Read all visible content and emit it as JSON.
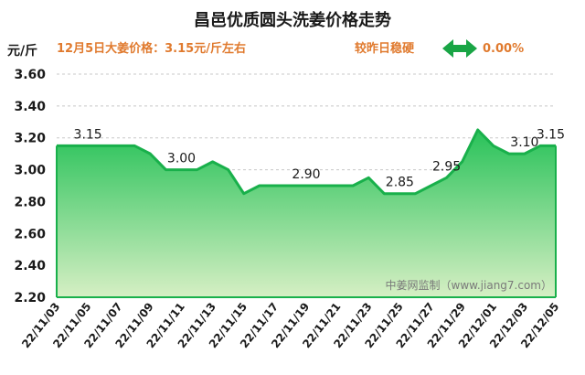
{
  "chart_data": {
    "type": "area",
    "title": "昌邑优质圆头洗姜价格走势",
    "ylabel": "元/斤",
    "info_text": "12月5日大姜价格：3.15元/斤左右",
    "trend_label": "较昨日稳硬",
    "change_text": "0.00%",
    "source_text": "中姜网监制（www.jiang7.com）",
    "ylim": [
      2.2,
      3.6
    ],
    "yticks": [
      "3.60",
      "3.40",
      "3.20",
      "3.00",
      "2.80",
      "2.60",
      "2.40",
      "2.20"
    ],
    "grid": true,
    "x": [
      "22/11/03",
      "22/11/04",
      "22/11/05",
      "22/11/06",
      "22/11/07",
      "22/11/08",
      "22/11/09",
      "22/11/10",
      "22/11/11",
      "22/11/12",
      "22/11/13",
      "22/11/14",
      "22/11/15",
      "22/11/16",
      "22/11/17",
      "22/11/18",
      "22/11/19",
      "22/11/20",
      "22/11/21",
      "22/11/22",
      "22/11/23",
      "22/11/24",
      "22/11/25",
      "22/11/26",
      "22/11/27",
      "22/11/28",
      "22/11/29",
      "22/11/30",
      "22/12/01",
      "22/12/02",
      "22/12/03",
      "22/12/04",
      "22/12/05"
    ],
    "xtick_labels": [
      "22/11/03",
      "22/11/05",
      "22/11/07",
      "22/11/09",
      "22/11/11",
      "22/11/13",
      "22/11/15",
      "22/11/17",
      "22/11/19",
      "22/11/21",
      "22/11/23",
      "22/11/25",
      "22/11/27",
      "22/11/29",
      "22/12/01",
      "22/12/03",
      "22/12/05"
    ],
    "values": [
      3.15,
      3.15,
      3.15,
      3.15,
      3.15,
      3.15,
      3.1,
      3.0,
      3.0,
      3.0,
      3.05,
      3.0,
      2.85,
      2.9,
      2.9,
      2.9,
      2.9,
      2.9,
      2.9,
      2.9,
      2.95,
      2.85,
      2.85,
      2.85,
      2.9,
      2.95,
      3.05,
      3.25,
      3.15,
      3.1,
      3.1,
      3.15,
      3.15
    ],
    "data_labels": [
      {
        "text": "3.15",
        "x": "22/11/05",
        "y": 3.15
      },
      {
        "text": "3.00",
        "x": "22/11/11",
        "y": 3.0
      },
      {
        "text": "2.90",
        "x": "22/11/19",
        "y": 2.9
      },
      {
        "text": "2.85",
        "x": "22/11/25",
        "y": 2.85
      },
      {
        "text": "2.95",
        "x": "22/11/28",
        "y": 2.95
      },
      {
        "text": "3.10",
        "x": "22/12/03",
        "y": 3.1
      },
      {
        "text": "3.15",
        "x": "22/12/05",
        "y": 3.15
      }
    ],
    "colors": {
      "line": "#19b04b",
      "fill_top": "#28c259",
      "fill_bottom": "#d6efc4",
      "accent": "#e07a2e",
      "arrow": "#19a545"
    }
  }
}
